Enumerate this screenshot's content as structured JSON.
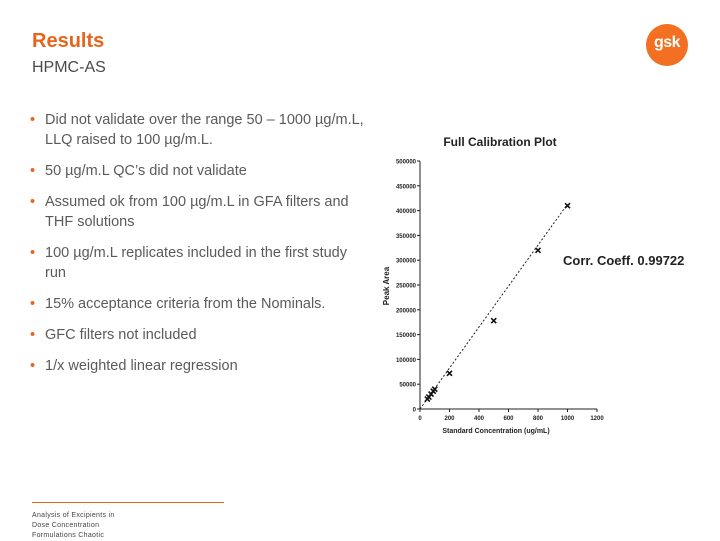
{
  "header": {
    "title": "Results",
    "subtitle": "HPMC-AS",
    "logo_text": "gsk"
  },
  "bullets": [
    "Did not validate over the range 50 – 1000 µg/m.L, LLQ raised to 100 µg/m.L.",
    "50 µg/m.L QC’s did not validate",
    "Assumed ok from 100 µg/m.L in GFA filters and THF solutions",
    "100 µg/m.L replicates included in the first study run",
    "15% acceptance criteria from the Nominals.",
    "GFC filters not included",
    "1/x weighted linear regression"
  ],
  "footer": {
    "text": "Analysis of Excipients in Dose Concentration Formulations Chaotic"
  },
  "colors": {
    "accent": "#e8641c",
    "logo": "#f36f21",
    "text": "#5a5a5a"
  },
  "chart_data": {
    "type": "scatter",
    "title": "Full Calibration Plot",
    "xlabel": "Standard Concentration (ug/mL)",
    "ylabel": "Peak Area",
    "annotation": "Corr. Coeff. 0.99722",
    "xlim": [
      0,
      1200
    ],
    "ylim": [
      0,
      500000
    ],
    "x_ticks": [
      0,
      200,
      400,
      600,
      800,
      1000,
      1200
    ],
    "y_ticks": [
      0,
      50000,
      100000,
      150000,
      200000,
      250000,
      300000,
      350000,
      400000,
      450000,
      500000
    ],
    "grid": false,
    "trendline": {
      "x": [
        0,
        1000
      ],
      "y": [
        0,
        413000
      ]
    },
    "series": [
      {
        "x": [
          50,
          60,
          75,
          90,
          100,
          200,
          500,
          800,
          1000
        ],
        "y": [
          20000,
          24000,
          30000,
          36000,
          40000,
          72000,
          178000,
          320000,
          410000
        ]
      }
    ]
  }
}
